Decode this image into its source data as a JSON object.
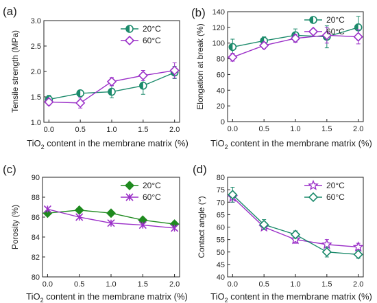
{
  "colors": {
    "series_20": "#1b8a6b",
    "series_60": "#9b30c8",
    "series_20_c": "#1f8a1f",
    "axis": "#222222"
  },
  "chart_data": [
    {
      "type": "line",
      "panel_label": "(a)",
      "xlabel": "TiO2 content in the membrane matrix (%)",
      "ylabel": "Tensile strength (MPa)",
      "x": [
        0.0,
        0.5,
        1.0,
        1.5,
        2.0
      ],
      "xticks": [
        "0.0",
        "0.5",
        "1.0",
        "1.5",
        "2.0"
      ],
      "ylim": [
        1.0,
        3.0
      ],
      "yticks": [
        "1.0",
        "1.5",
        "2.0",
        "2.5",
        "3.0"
      ],
      "legend_position": "top-right",
      "series": [
        {
          "name": "20°C",
          "marker": "half-circle",
          "color": "#1b8a6b",
          "values": [
            1.45,
            1.57,
            1.6,
            1.72,
            1.98
          ],
          "errors": [
            0.08,
            0.04,
            0.12,
            0.17,
            0.12
          ]
        },
        {
          "name": "60°C",
          "marker": "diamond",
          "color": "#9b30c8",
          "values": [
            1.4,
            1.38,
            1.8,
            1.92,
            2.02
          ],
          "errors": [
            0.06,
            0.1,
            0.08,
            0.1,
            0.15
          ]
        }
      ]
    },
    {
      "type": "line",
      "panel_label": "(b)",
      "xlabel": "TiO2 content in the membrane matrix (%)",
      "ylabel": "Elongation at break (%)",
      "x": [
        0.0,
        0.5,
        1.0,
        1.5,
        2.0
      ],
      "xticks": [
        "0.0",
        "0.5",
        "1.0",
        "1.5",
        "2.0"
      ],
      "ylim": [
        0,
        140
      ],
      "yticks": [
        "0",
        "20",
        "40",
        "60",
        "80",
        "100",
        "120",
        "140"
      ],
      "legend_position": "top-right",
      "series": [
        {
          "name": "20°C",
          "marker": "half-circle",
          "color": "#1b8a6b",
          "values": [
            95,
            103,
            110,
            108,
            120
          ],
          "errors": [
            10,
            5,
            8,
            14,
            14
          ]
        },
        {
          "name": "60°C",
          "marker": "diamond",
          "color": "#9b30c8",
          "values": [
            82,
            97,
            106,
            110,
            108
          ],
          "errors": [
            5,
            4,
            5,
            10,
            9
          ]
        }
      ]
    },
    {
      "type": "line",
      "panel_label": "(c)",
      "xlabel": "TiO2 content in the membrane matrix (%)",
      "ylabel": "Porosity (%)",
      "x": [
        0.0,
        0.5,
        1.0,
        1.5,
        2.0
      ],
      "xticks": [
        "0.0",
        "0.5",
        "1.0",
        "1.5",
        "2.0"
      ],
      "ylim": [
        80,
        90
      ],
      "yticks": [
        "80",
        "82",
        "84",
        "86",
        "88",
        "90"
      ],
      "legend_position": "top-right",
      "series": [
        {
          "name": "20°C",
          "marker": "diamond-filled",
          "color": "#1f8a1f",
          "values": [
            86.4,
            86.7,
            86.4,
            85.7,
            85.3
          ],
          "errors": [
            0,
            0,
            0,
            0,
            0
          ]
        },
        {
          "name": "60°C",
          "marker": "x-star",
          "color": "#9b30c8",
          "values": [
            86.8,
            86.0,
            85.4,
            85.2,
            84.9
          ],
          "errors": [
            0,
            0,
            0,
            0,
            0
          ]
        }
      ]
    },
    {
      "type": "line",
      "panel_label": "(d)",
      "xlabel": "TiO2 content in the membrane matrix (%)",
      "ylabel": "Contact angle (°)",
      "x": [
        0.0,
        0.5,
        1.0,
        1.5,
        2.0
      ],
      "xticks": [
        "0.0",
        "0.5",
        "1.0",
        "1.5",
        "2.0"
      ],
      "ylim": [
        40,
        80
      ],
      "yticks": [
        "40",
        "45",
        "50",
        "55",
        "60",
        "65",
        "70",
        "75",
        "80"
      ],
      "legend_position": "top-right",
      "series": [
        {
          "name": "20°C",
          "marker": "star",
          "color": "#9b30c8",
          "values": [
            72,
            60,
            55,
            53,
            52
          ],
          "errors": [
            2,
            1,
            1.5,
            2,
            1.5
          ]
        },
        {
          "name": "60°C",
          "marker": "diamond",
          "color": "#1b8a6b",
          "values": [
            73,
            61,
            57,
            50,
            49
          ],
          "errors": [
            3,
            2,
            1.5,
            2,
            1.5
          ]
        }
      ]
    }
  ]
}
